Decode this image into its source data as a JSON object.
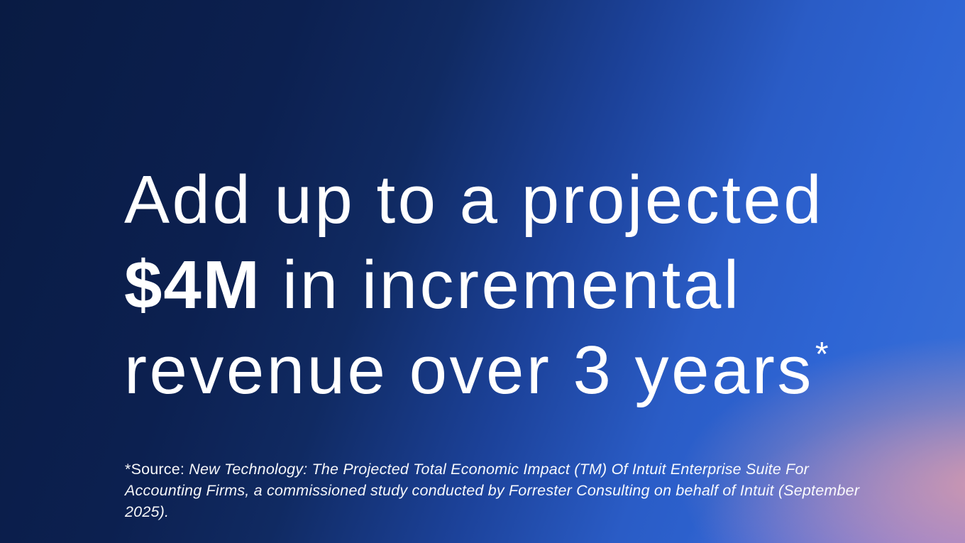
{
  "slide": {
    "headline": {
      "line1": "Add up to a projected",
      "line2_emphasis": "$4M",
      "line2_rest": " in incremental",
      "line3": "revenue over 3 years",
      "footnote_marker": "*"
    },
    "footnote": {
      "prefix": "*Source: ",
      "citation": "New Technology: The Projected Total Economic Impact (TM) Of Intuit Enterprise Suite For Accounting Firms, a commissioned study conducted by Forrester Consulting on behalf of Intuit (September 2025)."
    },
    "colors": {
      "background_dark_navy": "#0c2050",
      "background_royal_blue": "#2e65d4",
      "background_purple_glow": "#987edb",
      "background_pink_glow": "#e49ea8",
      "text": "#ffffff"
    }
  }
}
